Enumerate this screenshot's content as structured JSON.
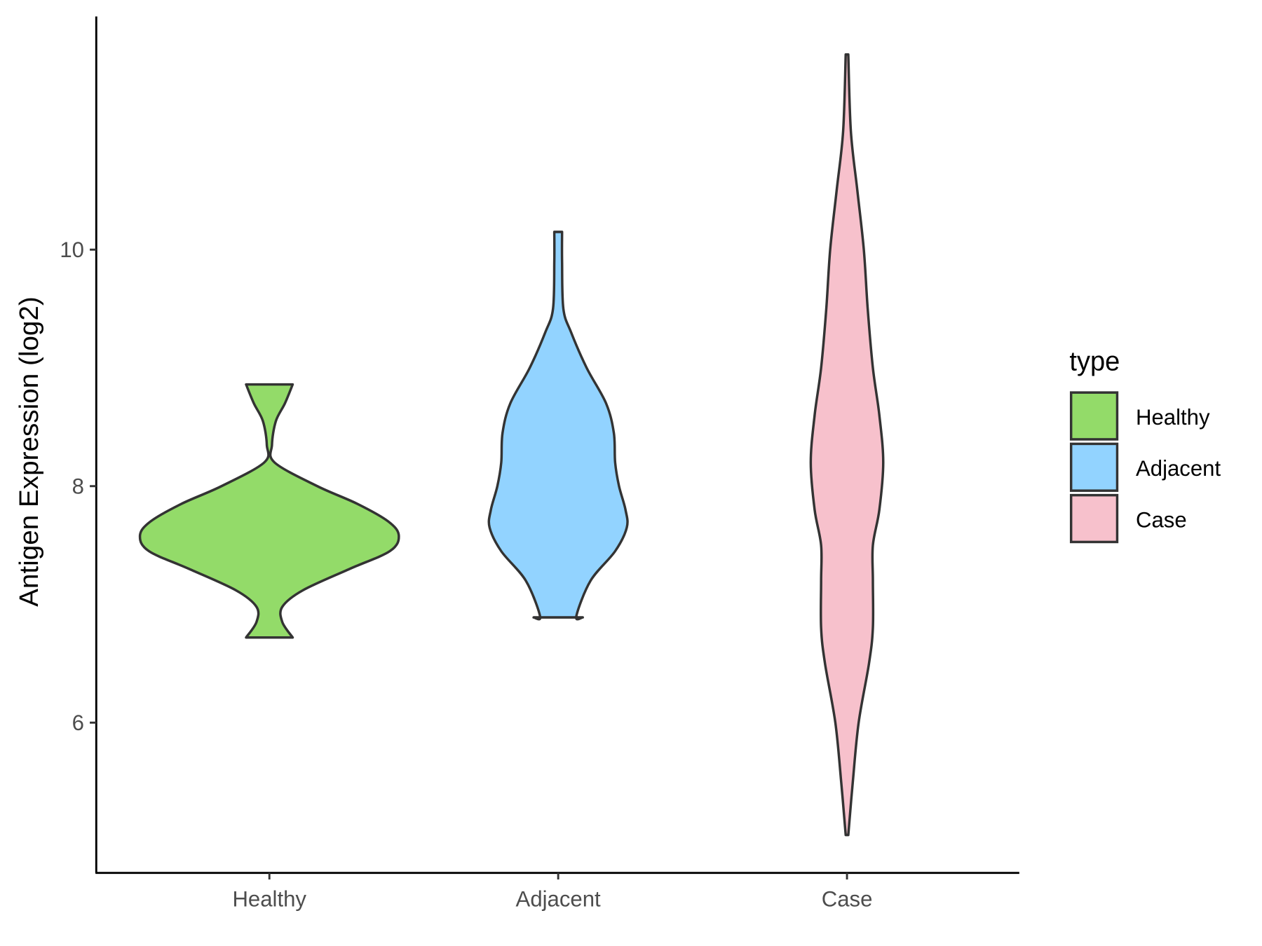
{
  "chart_data": {
    "type": "violin",
    "title": "",
    "xlabel": "",
    "ylabel": "Antigen Expression (log2)",
    "ylim": [
      4.75,
      11.95
    ],
    "yticks": [
      6,
      8,
      10
    ],
    "ytick_labels": [
      "6",
      "8",
      "10"
    ],
    "categories": [
      "Healthy",
      "Adjacent",
      "Case"
    ],
    "legend": {
      "title": "type",
      "position": "right",
      "entries": [
        "Healthy",
        "Adjacent",
        "Case"
      ]
    },
    "grid": false,
    "series": [
      {
        "name": "Healthy",
        "color": "#93DB69",
        "profile": [
          [
            8.86,
            0.18
          ],
          [
            8.7,
            0.12
          ],
          [
            8.55,
            0.05
          ],
          [
            8.35,
            0.02
          ],
          [
            8.2,
            0.04
          ],
          [
            8.0,
            0.37
          ],
          [
            7.85,
            0.68
          ],
          [
            7.7,
            0.92
          ],
          [
            7.58,
            1.0
          ],
          [
            7.45,
            0.93
          ],
          [
            7.3,
            0.62
          ],
          [
            7.12,
            0.26
          ],
          [
            6.98,
            0.1
          ],
          [
            6.85,
            0.1
          ],
          [
            6.72,
            0.18
          ]
        ]
      },
      {
        "name": "Adjacent",
        "color": "#92D3FF",
        "profile": [
          [
            10.15,
            0.03
          ],
          [
            9.9,
            0.03
          ],
          [
            9.5,
            0.04
          ],
          [
            9.3,
            0.1
          ],
          [
            9.0,
            0.22
          ],
          [
            8.7,
            0.37
          ],
          [
            8.45,
            0.43
          ],
          [
            8.2,
            0.44
          ],
          [
            8.0,
            0.47
          ],
          [
            7.8,
            0.52
          ],
          [
            7.65,
            0.53
          ],
          [
            7.45,
            0.44
          ],
          [
            7.2,
            0.25
          ],
          [
            6.9,
            0.14
          ],
          [
            6.89,
            0.19
          ]
        ]
      },
      {
        "name": "Case",
        "color": "#F7C1CC",
        "profile": [
          [
            11.65,
            0.01
          ],
          [
            11.0,
            0.03
          ],
          [
            10.5,
            0.08
          ],
          [
            10.0,
            0.13
          ],
          [
            9.5,
            0.16
          ],
          [
            9.0,
            0.2
          ],
          [
            8.6,
            0.25
          ],
          [
            8.2,
            0.28
          ],
          [
            7.8,
            0.25
          ],
          [
            7.5,
            0.2
          ],
          [
            7.2,
            0.2
          ],
          [
            6.8,
            0.2
          ],
          [
            6.5,
            0.17
          ],
          [
            6.0,
            0.09
          ],
          [
            5.5,
            0.045
          ],
          [
            5.05,
            0.01
          ]
        ]
      }
    ]
  }
}
